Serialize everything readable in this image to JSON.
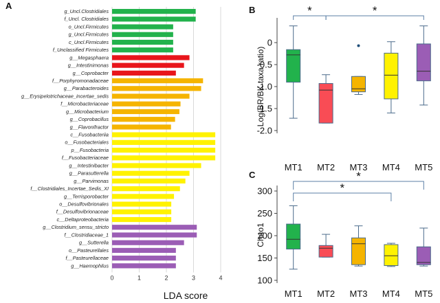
{
  "chart_data": [
    {
      "panel": "A",
      "type": "bar",
      "orientation": "horizontal",
      "xlabel": "LDA score",
      "xlim": [
        0,
        4
      ],
      "xticks": [
        0,
        1,
        2,
        3,
        4
      ],
      "grid": "vertical",
      "categories": [
        "g_Uncl.Clostridiales",
        "f_Uncl. Clostridiales",
        "o_Uncl.Firmicutes",
        "g_Uncl.Firmicutes",
        "c_Uncl.Firmicutes",
        "f_Unclassified Firmicutes",
        "g__Megasphaera",
        "g__Intestinimonas",
        "g__Coprobacter",
        "f__Porphyromonadaceae",
        "g__Parabacteroides",
        "g__Erysipelotrichaceae_incertae_sedis",
        "f__Microbacteriaceae",
        "g__Microbacterium",
        "g__Coprobacillus",
        "g__Flavonifractor",
        "c__Fusobacteriia",
        "o__Fusobacteriales",
        "p__Fusobacteria",
        "f__Fusobacteriaceae",
        "g__Intestinibacter",
        "g__Parasutterella",
        "g__Parvimonas",
        "f__Clostridiales_Incertae_Sedis_XI",
        "g__Terrisporobacter",
        "o__Desulfovibrionales",
        "f__Desulfovibrionaceae",
        "c__Deltaproteobacteria",
        "g__Clostridium_sensu_stricto",
        "f__Clostridiaceae_1",
        "g__Sutterella",
        "o__Pasteurellales",
        "f__Pasteurellaceae",
        "g__Haemophilus"
      ],
      "values": [
        3.08,
        3.08,
        2.25,
        2.25,
        2.25,
        2.25,
        2.85,
        2.65,
        2.35,
        3.35,
        3.28,
        2.85,
        2.52,
        2.48,
        2.32,
        2.17,
        3.8,
        3.8,
        3.8,
        3.8,
        3.28,
        2.85,
        2.7,
        2.5,
        2.28,
        2.18,
        2.18,
        2.18,
        3.12,
        3.12,
        2.65,
        2.35,
        2.35,
        2.35
      ],
      "groups": [
        "MT1",
        "MT1",
        "MT1",
        "MT1",
        "MT1",
        "MT1",
        "MT2",
        "MT2",
        "MT2",
        "MT3",
        "MT3",
        "MT3",
        "MT3",
        "MT3",
        "MT3",
        "MT3",
        "MT4",
        "MT4",
        "MT4",
        "MT4",
        "MT4",
        "MT4",
        "MT4",
        "MT4",
        "MT4",
        "MT4",
        "MT4",
        "MT4",
        "MT5",
        "MT5",
        "MT5",
        "MT5",
        "MT5",
        "MT5"
      ],
      "group_colors": {
        "MT1": "#22b24c",
        "MT2": "#e8151b",
        "MT3": "#f5b400",
        "MT4": "#fff200",
        "MT5": "#9b5db5"
      }
    },
    {
      "panel": "B",
      "type": "box",
      "ylabel": "Log(BR/BK taxa ratio)",
      "ylim": [
        -2.0,
        0.5
      ],
      "yticks": [
        "0",
        "-0.5",
        "-1.0",
        "-1.5",
        "-2.0"
      ],
      "ytick_values": [
        0,
        -0.5,
        -1.0,
        -1.5,
        -2.0
      ],
      "categories": [
        "MT1",
        "MT2",
        "MT3",
        "MT4",
        "MT5"
      ],
      "boxes": [
        {
          "min": -1.72,
          "q1": -0.9,
          "median": -0.28,
          "q3": -0.16,
          "max": 0.38,
          "outliers": []
        },
        {
          "min": -1.83,
          "q1": -1.83,
          "median": -1.08,
          "q3": -0.93,
          "max": -0.73,
          "outliers": []
        },
        {
          "min": -1.18,
          "q1": -1.12,
          "median": -1.05,
          "q3": -0.77,
          "max": -0.77,
          "outliers": [
            -0.07
          ]
        },
        {
          "min": -1.6,
          "q1": -1.28,
          "median": -0.74,
          "q3": -0.24,
          "max": 0.02,
          "outliers": []
        },
        {
          "min": -1.42,
          "q1": -0.87,
          "median": -0.65,
          "q3": -0.03,
          "max": 0.38,
          "outliers": []
        }
      ],
      "colors": [
        "#22b24c",
        "#f94c55",
        "#f5b400",
        "#fff200",
        "#9b5db5"
      ],
      "significance": [
        {
          "pair": [
            "MT1",
            "MT2"
          ],
          "label": "*"
        },
        {
          "pair": [
            "MT2",
            "MT5"
          ],
          "label": "*"
        }
      ]
    },
    {
      "panel": "C",
      "type": "box",
      "ylabel": "Chao1",
      "ylim": [
        100,
        300
      ],
      "yticks": [
        "300",
        "250",
        "200",
        "150",
        "100"
      ],
      "ytick_values": [
        300,
        250,
        200,
        150,
        100
      ],
      "categories": [
        "MT1",
        "MT2",
        "MT3",
        "MT4",
        "MT5"
      ],
      "boxes": [
        {
          "min": 125,
          "q1": 170,
          "median": 192,
          "q3": 226,
          "max": 267,
          "outliers": []
        },
        {
          "min": 152,
          "q1": 152,
          "median": 172,
          "q3": 178,
          "max": 203,
          "outliers": []
        },
        {
          "min": 132,
          "q1": 135,
          "median": 182,
          "q3": 195,
          "max": 222,
          "outliers": []
        },
        {
          "min": 131,
          "q1": 133,
          "median": 155,
          "q3": 180,
          "max": 183,
          "outliers": []
        },
        {
          "min": 132,
          "q1": 135,
          "median": 140,
          "q3": 175,
          "max": 217,
          "outliers": []
        }
      ],
      "colors": [
        "#22b24c",
        "#f94c55",
        "#f5b400",
        "#fff200",
        "#9b5db5"
      ],
      "significance": [
        {
          "pair": [
            "MT1",
            "MT4"
          ],
          "label": "*"
        },
        {
          "pair": [
            "MT1",
            "MT5"
          ],
          "label": "*"
        }
      ]
    }
  ]
}
